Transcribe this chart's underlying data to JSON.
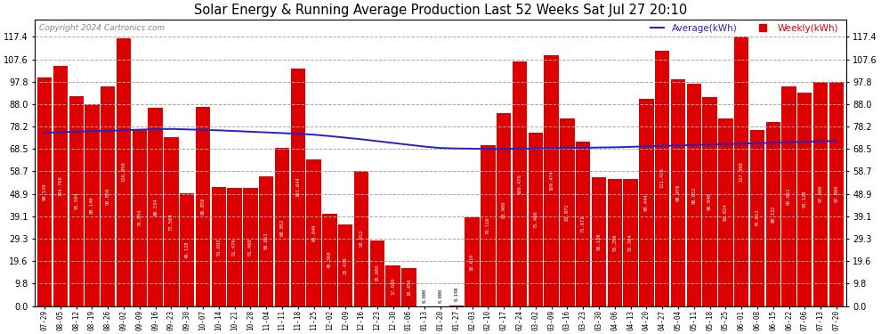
{
  "title": "Solar Energy & Running Average Production Last 52 Weeks Sat Jul 27 20:10",
  "copyright": "Copyright 2024 Cartronics.com",
  "legend_avg": "Average(kWh)",
  "legend_weekly": "Weekly(kWh)",
  "bar_color": "#dd0000",
  "avg_line_color": "#2222cc",
  "background_color": "#ffffff",
  "grid_color": "#aaaaaa",
  "yticks": [
    0.0,
    9.8,
    19.6,
    29.3,
    39.1,
    48.9,
    58.7,
    68.5,
    78.2,
    88.0,
    97.8,
    107.6,
    117.4
  ],
  "ymax": 125.0,
  "categories": [
    "07-29",
    "08-05",
    "08-12",
    "08-19",
    "08-26",
    "09-02",
    "09-09",
    "09-16",
    "09-23",
    "09-30",
    "10-07",
    "10-14",
    "10-21",
    "10-28",
    "11-04",
    "11-11",
    "11-18",
    "11-25",
    "12-02",
    "12-09",
    "12-16",
    "12-23",
    "12-30",
    "01-06",
    "01-13",
    "01-20",
    "01-27",
    "02-03",
    "02-10",
    "02-17",
    "02-24",
    "03-02",
    "03-09",
    "03-16",
    "03-23",
    "03-30",
    "04-06",
    "04-13",
    "04-20",
    "04-27",
    "05-04",
    "05-11",
    "05-18",
    "05-25",
    "06-01",
    "06-08",
    "06-15",
    "06-22",
    "07-06",
    "07-13",
    "07-20"
  ],
  "weekly_values": [
    99.52,
    104.768,
    91.584,
    88.14,
    95.856,
    116.856,
    76.954,
    86.534,
    73.564,
    49.128,
    86.856,
    51.692,
    51.476,
    51.468,
    56.652,
    68.952,
    103.644,
    64.04,
    40.368,
    35.42,
    58.912,
    28.6,
    17.6,
    16.456,
    0.0,
    0.0,
    0.148,
    38.616,
    70.116,
    83.96,
    106.476,
    75.46,
    109.474,
    81.972,
    71.672,
    56.126,
    55.256,
    55.384,
    90.444,
    111.428,
    98.976,
    96.852,
    90.94,
    81.824,
    117.368,
    76.812,
    80.132,
    95.852,
    93.128,
    97.8,
    97.8
  ],
  "avg_values": [
    75.5,
    75.8,
    76.0,
    76.2,
    76.4,
    76.6,
    76.9,
    77.1,
    77.2,
    77.0,
    76.8,
    76.6,
    76.3,
    76.0,
    75.7,
    75.4,
    75.1,
    74.7,
    74.1,
    73.4,
    72.7,
    71.9,
    71.1,
    70.3,
    69.5,
    68.9,
    68.7,
    68.6,
    68.5,
    68.5,
    68.6,
    68.7,
    68.8,
    68.9,
    69.0,
    69.1,
    69.2,
    69.4,
    69.6,
    69.8,
    70.0,
    70.2,
    70.4,
    70.6,
    70.8,
    71.0,
    71.2,
    71.4,
    71.6,
    71.8,
    72.0
  ]
}
